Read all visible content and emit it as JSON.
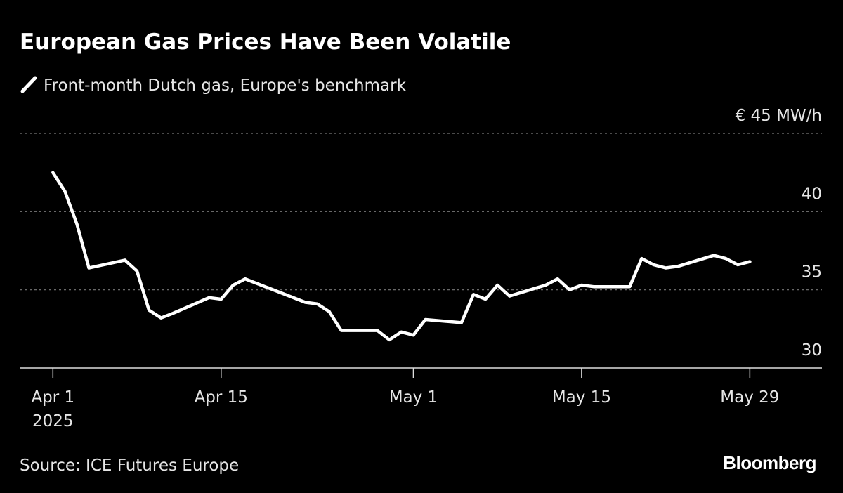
{
  "chart_data": {
    "type": "line",
    "title": "European Gas Prices Have Been Volatile",
    "source": "Source: ICE Futures Europe",
    "brand": "Bloomberg",
    "series": [
      {
        "name": "Front-month Dutch gas, Europe's benchmark",
        "color": "#ffffff",
        "x": [
          "2025-04-01",
          "2025-04-02",
          "2025-04-03",
          "2025-04-04",
          "2025-04-07",
          "2025-04-08",
          "2025-04-09",
          "2025-04-10",
          "2025-04-11",
          "2025-04-14",
          "2025-04-15",
          "2025-04-16",
          "2025-04-17",
          "2025-04-22",
          "2025-04-23",
          "2025-04-24",
          "2025-04-25",
          "2025-04-28",
          "2025-04-29",
          "2025-04-30",
          "2025-05-01",
          "2025-05-02",
          "2025-05-05",
          "2025-05-06",
          "2025-05-07",
          "2025-05-08",
          "2025-05-09",
          "2025-05-12",
          "2025-05-13",
          "2025-05-14",
          "2025-05-15",
          "2025-05-16",
          "2025-05-19",
          "2025-05-20",
          "2025-05-21",
          "2025-05-22",
          "2025-05-23",
          "2025-05-26",
          "2025-05-27",
          "2025-05-28",
          "2025-05-29"
        ],
        "values": [
          42.5,
          41.3,
          39.2,
          36.4,
          36.9,
          36.2,
          33.7,
          33.2,
          33.5,
          34.5,
          34.4,
          35.3,
          35.7,
          34.2,
          34.1,
          33.6,
          32.4,
          32.4,
          31.8,
          32.3,
          32.1,
          33.1,
          32.9,
          34.7,
          34.4,
          35.3,
          34.6,
          35.3,
          35.7,
          35.0,
          35.3,
          35.2,
          35.2,
          37.0,
          36.6,
          36.4,
          36.5,
          37.2,
          37.0,
          36.6,
          36.8
        ]
      }
    ],
    "xlim": [
      "2025-03-29",
      "2025-06-04"
    ],
    "xticks": [
      {
        "value": "2025-04-01",
        "label": "Apr 1",
        "sublabel": "2025"
      },
      {
        "value": "2025-04-15",
        "label": "Apr 15"
      },
      {
        "value": "2025-05-01",
        "label": "May 1"
      },
      {
        "value": "2025-05-15",
        "label": "May 15"
      },
      {
        "value": "2025-05-29",
        "label": "May 29"
      }
    ],
    "ylim": [
      30,
      45
    ],
    "yticks": [
      30,
      35,
      40,
      {
        "value": 45,
        "label": "€ 45 MW/h"
      }
    ],
    "grid": true
  }
}
